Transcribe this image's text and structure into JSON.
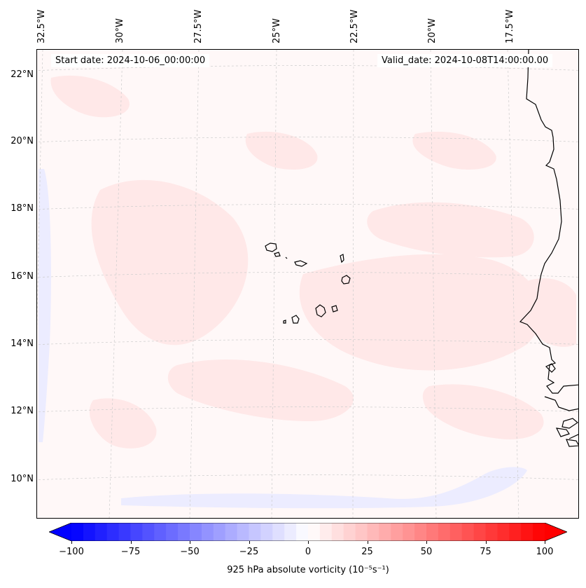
{
  "map": {
    "start_date": "Start date: 2024-10-06_00:00:00",
    "valid_date": "Valid_date: 2024-10-08T14:00:00.00",
    "lon_labels": [
      "32.5°W",
      "30°W",
      "27.5°W",
      "25°W",
      "22.5°W",
      "20°W",
      "17.5°W"
    ],
    "lat_labels": [
      "22°N",
      "20°N",
      "18°N",
      "16°N",
      "14°N",
      "12°N",
      "10°N"
    ],
    "coastline_color": "#000000",
    "field_colors": {
      "faint_positive": "#ffe4e4",
      "background": "#fff6f6",
      "negative": "#e6e6ff"
    }
  },
  "colorbar": {
    "label": "925 hPa absolute vorticity (10⁻⁵s⁻¹)",
    "ticks": [
      "−100",
      "−75",
      "−50",
      "−25",
      "0",
      "25",
      "50",
      "75",
      "100"
    ],
    "min": -100,
    "max": 100,
    "min_color": "#0000ff",
    "mid_color": "#ffffff",
    "max_color": "#ff0000"
  }
}
